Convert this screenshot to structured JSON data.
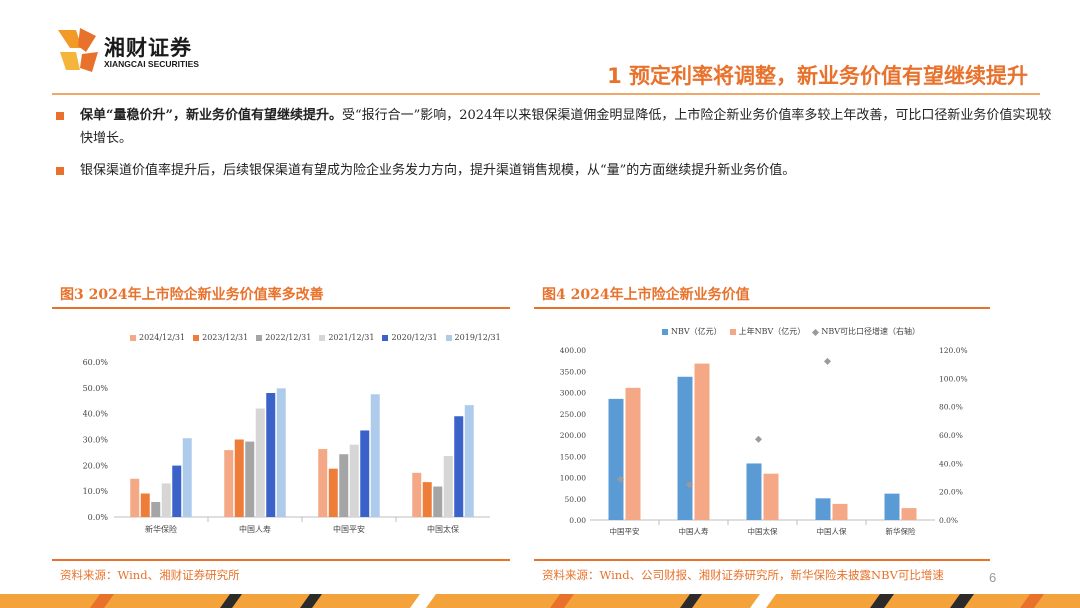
{
  "logo": {
    "cn": "湘财证券",
    "en": "XIANGCAI SECURITIES"
  },
  "title": "1 预定利率将调整，新业务价值有望继续提升",
  "bullets": [
    {
      "bold": "保单“量稳价升”，新业务价值有望继续提升。",
      "text": "受“报行合一”影响，2024年以来银保渠道佣金明显降低，上市险企新业务价值率多较上年改善，可比口径新业务价值实现较快增长。"
    },
    {
      "bold": "",
      "text": "银保渠道价值率提升后，后续银保渠道有望成为险企业务发力方向，提升渠道销售规模，从“量”的方面继续提升新业务价值。"
    }
  ],
  "figure3": {
    "title": "图3 2024年上市险企新业务价值率多改善",
    "source": "资料来源：Wind、湘财证券研究所"
  },
  "figure4": {
    "title": "图4 2024年上市险企新业务价值",
    "source": "资料来源：Wind、公司财报、湘财证券研究所，新华保险未披露NBV可比增速"
  },
  "page_number": "6",
  "colors": {
    "accent": "#e8722c",
    "navy": "#3a62c8",
    "blue": "#5b9bd5",
    "salmon": "#f4a886"
  },
  "chart_data": [
    {
      "type": "bar",
      "categories": [
        "新华保险",
        "中国人寿",
        "中国平安",
        "中国太保"
      ],
      "series": [
        {
          "name": "2024/12/31",
          "color": "#f4a886",
          "values": [
            14.8,
            25.9,
            26.3,
            17.1
          ]
        },
        {
          "name": "2023/12/31",
          "color": "#ee7d3a",
          "values": [
            9.1,
            30.0,
            18.7,
            13.5
          ]
        },
        {
          "name": "2022/12/31",
          "color": "#a5a5a5",
          "values": [
            5.8,
            29.2,
            24.3,
            11.8
          ]
        },
        {
          "name": "2021/12/31",
          "color": "#d6d6d6",
          "values": [
            13.0,
            42.0,
            28.0,
            23.6
          ]
        },
        {
          "name": "2020/12/31",
          "color": "#3a62c8",
          "values": [
            19.9,
            48.0,
            33.5,
            39.0
          ]
        },
        {
          "name": "2019/12/31",
          "color": "#aecbeb",
          "values": [
            30.5,
            49.8,
            47.5,
            43.3
          ]
        }
      ],
      "ylim": [
        0,
        60
      ],
      "yticks": [
        "0.0%",
        "10.0%",
        "20.0%",
        "30.0%",
        "40.0%",
        "50.0%",
        "60.0%"
      ],
      "grid": false,
      "legend": "top"
    },
    {
      "type": "bar",
      "categories": [
        "中国平安",
        "中国人寿",
        "中国太保",
        "中国人保",
        "新华保险"
      ],
      "series": [
        {
          "name": "NBV（亿元）",
          "color": "#5b9bd5",
          "values": [
            285.0,
            337.0,
            133.0,
            51.0,
            62.0
          ]
        },
        {
          "name": "上年NBV（亿元）",
          "color": "#f4a886",
          "values": [
            311.0,
            368.0,
            109.0,
            38.0,
            28.0
          ]
        },
        {
          "name": "NBV可比口径增速（右轴）",
          "color": "#9a9a9a",
          "values": [
            28.8,
            25.0,
            57.0,
            112.0,
            null
          ]
        }
      ],
      "ylim": [
        0,
        400
      ],
      "yticks": [
        "0.00",
        "50.00",
        "100.00",
        "150.00",
        "200.00",
        "250.00",
        "300.00",
        "350.00",
        "400.00"
      ],
      "y2lim": [
        0,
        120
      ],
      "y2ticks": [
        "0.0%",
        "20.0%",
        "40.0%",
        "60.0%",
        "80.0%",
        "100.0%",
        "120.0%"
      ],
      "grid": false,
      "legend": "top"
    }
  ]
}
